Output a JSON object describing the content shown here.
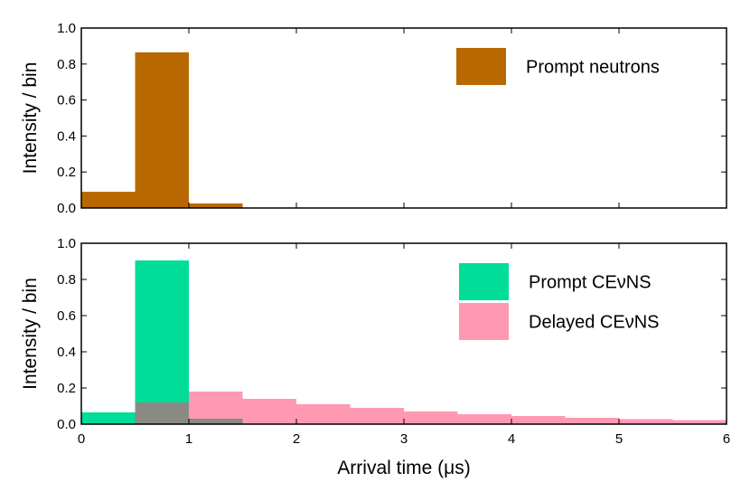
{
  "chart_data": [
    {
      "type": "bar",
      "histogram": true,
      "ylabel": "Intensity / bin",
      "xlim": [
        0,
        6
      ],
      "ylim": [
        0,
        1.0
      ],
      "xticks": [
        "0",
        "1",
        "2",
        "3",
        "4",
        "5",
        "6"
      ],
      "yticks": [
        "0.0",
        "0.2",
        "0.4",
        "0.6",
        "0.8",
        "1.0"
      ],
      "grid": false,
      "legend_position": "top-right",
      "bin_edges": [
        0,
        0.5,
        1.0,
        1.5,
        2.0,
        2.5,
        3.0,
        3.5,
        4.0,
        4.5,
        5.0,
        5.5,
        6.0
      ],
      "series": [
        {
          "name": "Prompt neutrons",
          "color": "#b86800",
          "values": [
            0.09,
            0.865,
            0.025,
            0,
            0,
            0,
            0,
            0,
            0,
            0,
            0,
            0
          ]
        }
      ]
    },
    {
      "type": "bar",
      "histogram": true,
      "ylabel": "Intensity / bin",
      "xlabel": "Arrival time (μs)",
      "xlim": [
        0,
        6
      ],
      "ylim": [
        0,
        1.0
      ],
      "xticks": [
        "0",
        "1",
        "2",
        "3",
        "4",
        "5",
        "6"
      ],
      "yticks": [
        "0.0",
        "0.2",
        "0.4",
        "0.6",
        "0.8",
        "1.0"
      ],
      "grid": false,
      "legend_position": "top-right",
      "bin_edges": [
        0,
        0.5,
        1.0,
        1.5,
        2.0,
        2.5,
        3.0,
        3.5,
        4.0,
        4.5,
        5.0,
        5.5,
        6.0
      ],
      "series": [
        {
          "name": "Prompt CEνNS",
          "color": "#00dd99",
          "values": [
            0.065,
            0.905,
            0.03,
            0,
            0,
            0,
            0,
            0,
            0,
            0,
            0,
            0
          ]
        },
        {
          "name": "Delayed CEνNS",
          "color": "#ff99b3",
          "values": [
            0.0,
            0.12,
            0.18,
            0.14,
            0.11,
            0.09,
            0.07,
            0.055,
            0.045,
            0.035,
            0.028,
            0.022
          ]
        }
      ]
    }
  ]
}
